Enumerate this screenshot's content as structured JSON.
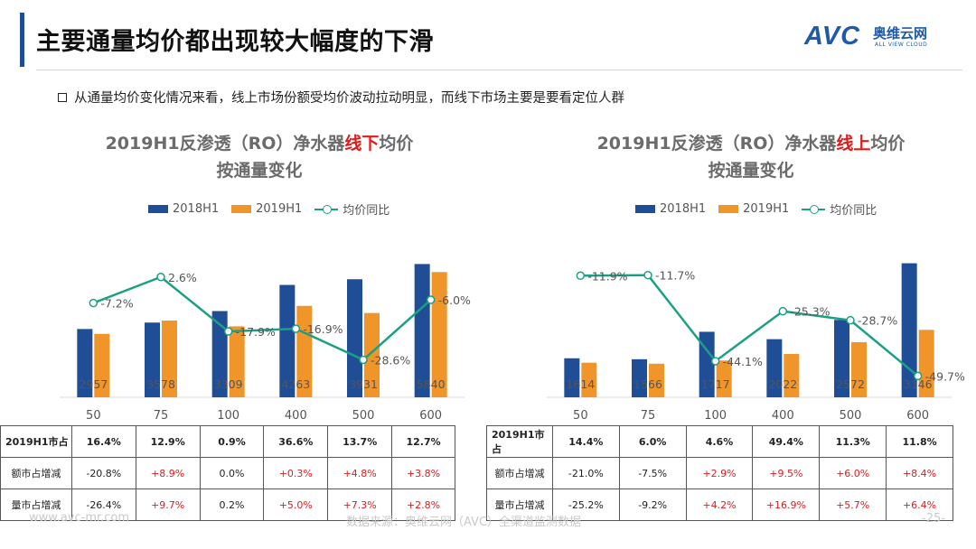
{
  "header": {
    "title": "主要通量均价都出现较大幅度的下滑",
    "logo": {
      "mark": "AVC",
      "cn": "奥维云网",
      "en": "ALL VIEW CLOUD"
    }
  },
  "bullet": "从通量均价变化情况来看，线上市场份额受均价波动拉动明显，而线下市场主要是要看定位人群",
  "legend": {
    "s1": "2018H1",
    "s2": "2019H1",
    "s3": "均价同比"
  },
  "colors": {
    "s1": "#1f4e96",
    "s2": "#f0952a",
    "line": "#1aa083",
    "highlight": "#e11b1b"
  },
  "left": {
    "title_pre": "2019H1反渗透（RO）净水器",
    "title_hl": "线下",
    "title_post": "均价",
    "title_line2": "按通量变化",
    "table": {
      "header_label": "2019H1市占",
      "row2_label": "额市占增减",
      "row3_label": "量市占增减",
      "row1": [
        "16.4%",
        "12.9%",
        "0.9%",
        "36.6%",
        "13.7%",
        "12.7%"
      ],
      "row2": [
        "-20.8%",
        "+8.9%",
        "0.0%",
        "+0.3%",
        "+4.8%",
        "+3.8%"
      ],
      "row3": [
        "-26.4%",
        "+9.7%",
        "0.2%",
        "+5.0%",
        "+7.3%",
        "+2.8%"
      ]
    }
  },
  "right": {
    "title_pre": "2019H1反渗透（RO）净水器",
    "title_hl": "线上",
    "title_post": "均价",
    "title_line2": "按通量变化",
    "table": {
      "header_label": "2019H1市占",
      "row2_label": "额市占增减",
      "row3_label": "量市占增减",
      "row1": [
        "14.4%",
        "6.0%",
        "4.6%",
        "49.4%",
        "11.3%",
        "11.8%"
      ],
      "row2": [
        "-21.0%",
        "-7.5%",
        "+2.9%",
        "+9.5%",
        "+6.0%",
        "+8.4%"
      ],
      "row3": [
        "-25.2%",
        "-9.2%",
        "+4.2%",
        "+16.9%",
        "+5.7%",
        "+6.4%"
      ]
    }
  },
  "footer": {
    "left": "www.avc-mr.com",
    "mid": "数据来源：奥维云网（AVC）全渠道监测数据",
    "page": "-25-"
  },
  "chart_data": [
    {
      "type": "bar",
      "title": "2019H1反渗透（RO）净水器线下均价 按通量变化",
      "categories": [
        "50",
        "75",
        "100",
        "400",
        "500",
        "600"
      ],
      "series": [
        {
          "name": "2018H1",
          "values": [
            3185,
            3485,
            4021,
            5240,
            5505,
            6215
          ]
        },
        {
          "name": "2019H1",
          "values": [
            2957,
            3578,
            3309,
            4263,
            3931,
            5840
          ]
        }
      ],
      "value_labels": [
        "2957",
        "3578",
        "3309",
        "4263",
        "3931",
        "5840"
      ],
      "line": {
        "name": "均价同比",
        "values": [
          -7.2,
          2.6,
          -17.9,
          -16.9,
          -28.6,
          -6.0
        ],
        "labels": [
          "-7.2%",
          "2.6%",
          "-17.9%",
          "-16.9%",
          "-28.6%",
          "-6.0%"
        ]
      },
      "ylim": [
        0,
        6400
      ],
      "line_ylim": [
        -40,
        10
      ]
    },
    {
      "type": "bar",
      "title": "2019H1反渗透（RO）净水器线上均价 按通量变化",
      "categories": [
        "50",
        "75",
        "100",
        "400",
        "500",
        "600"
      ],
      "series": [
        {
          "name": "2018H1",
          "values": [
            1820,
            1775,
            3055,
            2710,
            3610,
            6250
          ]
        },
        {
          "name": "2019H1",
          "values": [
            1614,
            1566,
            1717,
            2022,
            2572,
            3146
          ]
        }
      ],
      "value_labels": [
        "1614",
        "1566",
        "1717",
        "2022",
        "2572",
        "3146"
      ],
      "line": {
        "name": "均价同比",
        "values": [
          -11.9,
          -11.7,
          -44.1,
          -25.3,
          -28.7,
          -49.7
        ],
        "labels": [
          "-11.9%",
          "-11.7%",
          "-44.1%",
          "-25.3%",
          "-28.7%",
          "-49.7%"
        ]
      },
      "ylim": [
        0,
        6400
      ],
      "line_ylim": [
        -55,
        -5
      ]
    }
  ]
}
